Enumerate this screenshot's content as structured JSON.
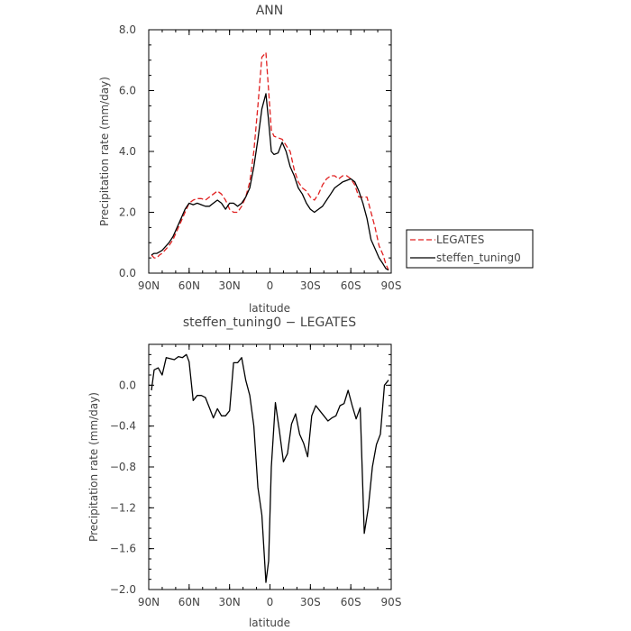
{
  "chart_data": [
    {
      "type": "line",
      "title": "ANN",
      "xlabel": "latitude",
      "ylabel": "Precipitation rate (mm/day)",
      "xlim": [
        90,
        -90
      ],
      "ylim": [
        0,
        8
      ],
      "x_tick_values": [
        90,
        60,
        30,
        0,
        -30,
        -60,
        -90
      ],
      "x_tick_labels": [
        "90N",
        "60N",
        "30N",
        "0",
        "30S",
        "60S",
        "90S"
      ],
      "y_tick_values": [
        0,
        2,
        4,
        6,
        8
      ],
      "y_tick_labels": [
        "0.0",
        "2.0",
        "4.0",
        "6.0",
        "8.0"
      ],
      "legend_position": "right",
      "series": [
        {
          "name": "LEGATES",
          "color": "#e02020",
          "dash": "dashed",
          "x": [
            88,
            86,
            84,
            82,
            80,
            78,
            75,
            72,
            69,
            66,
            63,
            60,
            57,
            54,
            51,
            48,
            45,
            42,
            39,
            36,
            33,
            30,
            27,
            24,
            21,
            18,
            15,
            12,
            9,
            6,
            3,
            1,
            -1,
            -3,
            -6,
            -9,
            -12,
            -15,
            -18,
            -21,
            -24,
            -27,
            -30,
            -33,
            -36,
            -39,
            -42,
            -45,
            -48,
            -51,
            -54,
            -57,
            -60,
            -63,
            -66,
            -69,
            -72,
            -75,
            -78,
            -81,
            -84,
            -86,
            -88
          ],
          "y": [
            0.6,
            0.5,
            0.5,
            0.6,
            0.65,
            0.75,
            0.9,
            1.1,
            1.4,
            1.7,
            2.0,
            2.3,
            2.4,
            2.45,
            2.45,
            2.4,
            2.5,
            2.6,
            2.7,
            2.6,
            2.4,
            2.1,
            2.0,
            2.0,
            2.2,
            2.5,
            3.0,
            4.0,
            5.5,
            7.1,
            7.25,
            6.0,
            4.7,
            4.5,
            4.45,
            4.4,
            4.2,
            4.0,
            3.4,
            3.0,
            2.8,
            2.7,
            2.5,
            2.4,
            2.6,
            2.9,
            3.1,
            3.2,
            3.2,
            3.1,
            3.2,
            3.2,
            3.1,
            2.9,
            2.5,
            2.5,
            2.5,
            2.0,
            1.5,
            0.9,
            0.6,
            0.3,
            0.1
          ]
        },
        {
          "name": "steffen_tuning0",
          "color": "#000000",
          "dash": "solid",
          "x": [
            88,
            86,
            84,
            82,
            80,
            78,
            75,
            72,
            69,
            66,
            63,
            60,
            57,
            54,
            51,
            48,
            45,
            42,
            39,
            36,
            33,
            30,
            27,
            24,
            21,
            18,
            15,
            12,
            9,
            6,
            3,
            1,
            -1,
            -3,
            -6,
            -9,
            -12,
            -15,
            -18,
            -21,
            -24,
            -27,
            -30,
            -33,
            -36,
            -39,
            -42,
            -45,
            -48,
            -51,
            -54,
            -57,
            -60,
            -63,
            -66,
            -69,
            -72,
            -75,
            -78,
            -81,
            -84,
            -86,
            -88
          ],
          "y": [
            0.6,
            0.65,
            0.65,
            0.7,
            0.75,
            0.85,
            1.0,
            1.2,
            1.5,
            1.8,
            2.1,
            2.3,
            2.25,
            2.3,
            2.25,
            2.2,
            2.2,
            2.3,
            2.4,
            2.3,
            2.1,
            2.3,
            2.3,
            2.2,
            2.3,
            2.5,
            2.8,
            3.5,
            4.4,
            5.4,
            5.9,
            5.0,
            4.0,
            3.9,
            3.95,
            4.3,
            4.0,
            3.5,
            3.2,
            2.8,
            2.6,
            2.3,
            2.1,
            2.0,
            2.1,
            2.2,
            2.4,
            2.6,
            2.8,
            2.9,
            3.0,
            3.05,
            3.1,
            3.0,
            2.7,
            2.3,
            1.8,
            1.1,
            0.8,
            0.5,
            0.3,
            0.15,
            0.1
          ]
        }
      ]
    },
    {
      "type": "line",
      "title": "steffen_tuning0 − LEGATES",
      "xlabel": "latitude",
      "ylabel": "Precipitation rate (mm/day)",
      "xlim": [
        90,
        -90
      ],
      "ylim": [
        -2.0,
        0.4
      ],
      "x_tick_values": [
        90,
        60,
        30,
        0,
        -30,
        -60,
        -90
      ],
      "x_tick_labels": [
        "90N",
        "60N",
        "30N",
        "0",
        "30S",
        "60S",
        "90S"
      ],
      "y_tick_values": [
        0.0,
        -0.4,
        -0.8,
        -1.2,
        -1.6,
        -2.0
      ],
      "y_tick_labels": [
        "0.0",
        "−0.4",
        "−0.8",
        "−1.2",
        "−1.6",
        "−2.0"
      ],
      "series": [
        {
          "name": "",
          "color": "#000000",
          "dash": "solid",
          "x": [
            88,
            86,
            83,
            80,
            77,
            74,
            71,
            68,
            65,
            62,
            60,
            57,
            54,
            51,
            48,
            45,
            42,
            39,
            36,
            33,
            30,
            27,
            24,
            21,
            18,
            15,
            12,
            9,
            6,
            3,
            1,
            -1,
            -4,
            -7,
            -10,
            -13,
            -16,
            -19,
            -22,
            -25,
            -28,
            -31,
            -34,
            -37,
            -40,
            -43,
            -46,
            -49,
            -52,
            -55,
            -58,
            -61,
            -64,
            -67,
            -70,
            -73,
            -76,
            -79,
            -82,
            -85,
            -88
          ],
          "y": [
            -0.05,
            0.15,
            0.17,
            0.1,
            0.27,
            0.26,
            0.25,
            0.28,
            0.27,
            0.3,
            0.23,
            -0.15,
            -0.1,
            -0.1,
            -0.12,
            -0.22,
            -0.32,
            -0.23,
            -0.3,
            -0.3,
            -0.25,
            0.22,
            0.22,
            0.27,
            0.05,
            -0.1,
            -0.4,
            -1.0,
            -1.27,
            -1.93,
            -1.72,
            -0.8,
            -0.17,
            -0.45,
            -0.75,
            -0.67,
            -0.38,
            -0.28,
            -0.48,
            -0.57,
            -0.7,
            -0.3,
            -0.2,
            -0.25,
            -0.3,
            -0.35,
            -0.32,
            -0.3,
            -0.2,
            -0.18,
            -0.05,
            -0.2,
            -0.33,
            -0.22,
            -1.45,
            -1.2,
            -0.8,
            -0.58,
            -0.48,
            0.0,
            0.05
          ]
        }
      ]
    }
  ],
  "legend": {
    "items": [
      {
        "label": "LEGATES",
        "color": "#e02020",
        "dash": "dashed"
      },
      {
        "label": "steffen_tuning0",
        "color": "#000000",
        "dash": "solid"
      }
    ]
  }
}
